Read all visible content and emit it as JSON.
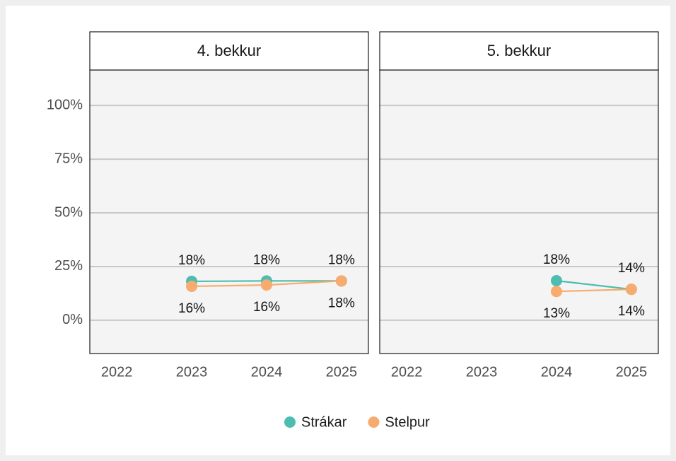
{
  "chart_data": {
    "type": "line",
    "categories": [
      "2022",
      "2023",
      "2024",
      "2025"
    ],
    "ylim": [
      -15.5,
      116.5
    ],
    "yticks": [
      {
        "value": 0,
        "label": "0%"
      },
      {
        "value": 25,
        "label": "25%"
      },
      {
        "value": 50,
        "label": "50%"
      },
      {
        "value": 75,
        "label": "75%"
      },
      {
        "value": 100,
        "label": "100%"
      }
    ],
    "grid": true,
    "legend": "bottom",
    "series": [
      {
        "name": "Strákar",
        "color": "#4dbdb0"
      },
      {
        "name": "Stelpur",
        "color": "#f7ab6e"
      }
    ],
    "facets": [
      {
        "title": "4. bekkur",
        "series": [
          {
            "values": [
              null,
              18.1,
              18.3,
              18.3
            ],
            "value_labels": [
              null,
              "18%",
              "18%",
              "18%"
            ]
          },
          {
            "values": [
              null,
              15.8,
              16.4,
              18.3
            ],
            "value_labels": [
              null,
              "16%",
              "16%",
              "18%"
            ]
          }
        ]
      },
      {
        "title": "5. bekkur",
        "series": [
          {
            "values": [
              null,
              null,
              18.4,
              14.4
            ],
            "value_labels": [
              null,
              null,
              "18%",
              "14%"
            ]
          },
          {
            "values": [
              null,
              null,
              13.4,
              14.4
            ],
            "value_labels": [
              null,
              null,
              "13%",
              "14%"
            ]
          }
        ]
      }
    ]
  }
}
